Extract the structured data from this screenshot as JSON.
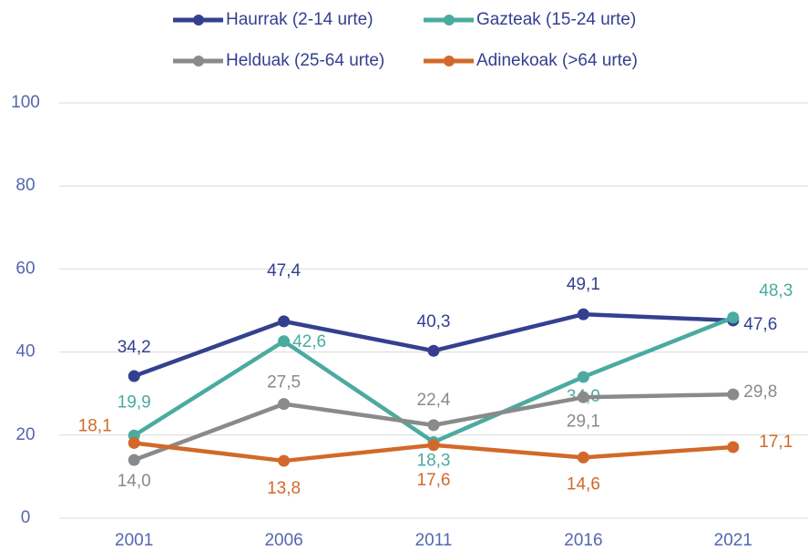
{
  "chart_data": {
    "type": "line",
    "categories": [
      "2001",
      "2006",
      "2011",
      "2016",
      "2021"
    ],
    "series": [
      {
        "name": "Haurrak (2-14 urte)",
        "color": "#34408f",
        "values": [
          34.2,
          47.4,
          40.3,
          49.1,
          47.6
        ],
        "value_labels": [
          "34,2",
          "47,4",
          "40,3",
          "49,1",
          "47,6"
        ]
      },
      {
        "name": "Gazteak (15-24 urte)",
        "color": "#4aaba0",
        "values": [
          19.9,
          42.6,
          18.3,
          34.0,
          48.3
        ],
        "value_labels": [
          "19,9",
          "42,6",
          "18,3",
          "34,0",
          "48,3"
        ]
      },
      {
        "name": "Helduak (25-64 urte)",
        "color": "#8a8a8a",
        "values": [
          14.0,
          27.5,
          22.4,
          29.1,
          29.8
        ],
        "value_labels": [
          "14,0",
          "27,5",
          "22,4",
          "29,1",
          "29,8"
        ]
      },
      {
        "name": "Adinekoak (>64 urte)",
        "color": "#d2692a",
        "values": [
          18.1,
          13.8,
          17.6,
          14.6,
          17.1
        ],
        "value_labels": [
          "18,1",
          "13,8",
          "17,6",
          "14,6",
          "17,1"
        ]
      }
    ],
    "ylim": [
      0,
      100
    ],
    "yticks": [
      0,
      20,
      40,
      60,
      80,
      100
    ],
    "grid": true
  }
}
